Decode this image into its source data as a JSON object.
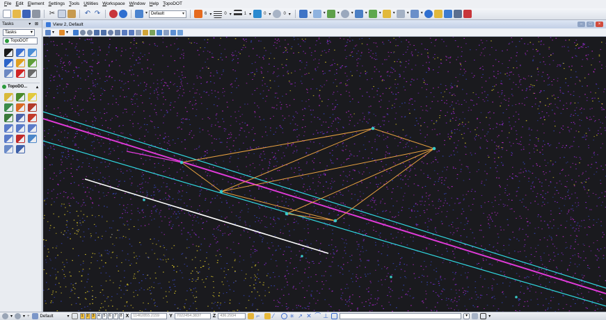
{
  "menu": [
    "File",
    "Edit",
    "Element",
    "Settings",
    "Tools",
    "Utilities",
    "Workspace",
    "Window",
    "Help",
    "TopoDOT"
  ],
  "toolbar": {
    "level_combo": "Default",
    "color_value": "6",
    "style_value": "0",
    "weight_value": "1",
    "fill_value": "0",
    "transparency_value": "0"
  },
  "tasks": {
    "title": "Tasks",
    "select_value": "Tasks",
    "tab_label": "TopoDOT",
    "section_label": "TopoDO...",
    "tools_top": [
      {
        "icon": "select-arrow-icon",
        "color": "#1b1b1b"
      },
      {
        "icon": "fence-icon",
        "color": "#3b6fd0"
      },
      {
        "icon": "measure-icon",
        "color": "#4d8fd6"
      },
      {
        "icon": "rotate-view-icon",
        "color": "#2c64c8"
      },
      {
        "icon": "palette-icon",
        "color": "#e0a020"
      },
      {
        "icon": "tag-icon",
        "color": "#5f9e3a"
      },
      {
        "icon": "copy-icon",
        "color": "#6c88c2"
      },
      {
        "icon": "delete-icon",
        "color": "#d02424"
      },
      {
        "icon": "line-tool-icon",
        "color": "#6a6a6a"
      }
    ],
    "tools_topo": [
      {
        "icon": "pointcloud-icon",
        "color": "#d8b93a"
      },
      {
        "icon": "tree-icon",
        "color": "#4a8a2a"
      },
      {
        "icon": "grid-icon",
        "color": "#e2c93c"
      },
      {
        "icon": "curb-icon",
        "color": "#3c8c4a"
      },
      {
        "icon": "breakline-icon",
        "color": "#d86a24"
      },
      {
        "icon": "vertex-icon",
        "color": "#b23a2a"
      },
      {
        "icon": "cross-section-icon",
        "color": "#3a7a3a"
      },
      {
        "icon": "photo-icon",
        "color": "#4b62a8"
      },
      {
        "icon": "pin-icon",
        "color": "#c23a2a"
      },
      {
        "icon": "point-icon",
        "color": "#5a7ac8"
      },
      {
        "icon": "polyline-icon",
        "color": "#5a7ac8"
      },
      {
        "icon": "shape-icon",
        "color": "#5a7ac8"
      },
      {
        "icon": "smartline-icon",
        "color": "#5a7ac8"
      },
      {
        "icon": "text-icon",
        "color": "#c02a2a"
      },
      {
        "icon": "ellipse-icon",
        "color": "#4b86c8"
      },
      {
        "icon": "cell-icon",
        "color": "#6a8ac8"
      },
      {
        "icon": "zoom-icon",
        "color": "#3d5fa8"
      }
    ]
  },
  "view": {
    "title": "View 2, Default",
    "colors": {
      "background": "#1a1a1e",
      "cloud_purple": "#8a2ad8",
      "cloud_magenta": "#c02ad0",
      "cloud_blue": "#3a48c8",
      "cloud_yellow": "#e6d02a",
      "breakline_orange": "#e8a240",
      "vertex_cyan": "#38c8c8",
      "edge_magenta": "#e03ad8",
      "edge_cyan": "#30d8e0",
      "edge_white": "#ffffff"
    }
  },
  "statusbar": {
    "level_display": "Default",
    "levels": [
      "1",
      "2",
      "3",
      "4",
      "5",
      "6",
      "7",
      "8"
    ],
    "active_levels": [
      "1",
      "2",
      "3"
    ],
    "x_label": "X",
    "x_value": "11462855.2159",
    "y_label": "Y",
    "y_value": "7022454.3837",
    "z_label": "Z",
    "z_value": "436.2934"
  }
}
